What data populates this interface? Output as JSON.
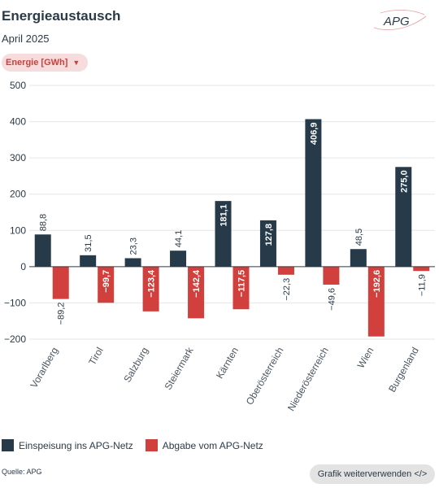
{
  "header": {
    "title": "Energieaustausch",
    "subtitle": "April 2025",
    "logo_text": "APG"
  },
  "dropdown": {
    "label": "Energie [GWh]",
    "icon": "chevron-down-icon"
  },
  "legend": {
    "items": [
      {
        "label": "Einspeisung ins APG-Netz",
        "color": "#263a4a"
      },
      {
        "label": "Abgabe vom APG-Netz",
        "color": "#d1403c"
      }
    ]
  },
  "footer": {
    "source": "Quelle: APG",
    "reuse_label": "Grafik weiterverwenden </>"
  },
  "chart_data": {
    "type": "bar",
    "categories": [
      "Vorarlberg",
      "Tirol",
      "Salzburg",
      "Steiermark",
      "Kärnten",
      "Oberösterreich",
      "Niederösterreich",
      "Wien",
      "Burgenland"
    ],
    "series": [
      {
        "name": "Einspeisung ins APG-Netz",
        "color": "#263a4a",
        "values": [
          88.8,
          31.5,
          23.3,
          44.1,
          181.1,
          127.8,
          406.9,
          48.5,
          275.0
        ],
        "labels": [
          "88,8",
          "31,5",
          "23,3",
          "44,1",
          "181,1",
          "127,8",
          "406,9",
          "48,5",
          "275,0"
        ]
      },
      {
        "name": "Abgabe vom APG-Netz",
        "color": "#d1403c",
        "values": [
          -89.2,
          -99.7,
          -123.4,
          -142.4,
          -117.5,
          -22.3,
          -49.6,
          -192.6,
          -11.9
        ],
        "labels": [
          "−89,2",
          "−99,7",
          "−123,4",
          "−142,4",
          "−117,5",
          "−22,3",
          "−49,6",
          "−192,6",
          "−11,9"
        ]
      }
    ],
    "ylim": [
      -200,
      500
    ],
    "yticks": [
      -200,
      -100,
      0,
      100,
      200,
      300,
      400,
      500
    ],
    "ytick_labels": [
      "−200",
      "−100",
      "0",
      "100",
      "200",
      "300",
      "400",
      "500"
    ],
    "grid": true,
    "legend": "bottom-left"
  }
}
